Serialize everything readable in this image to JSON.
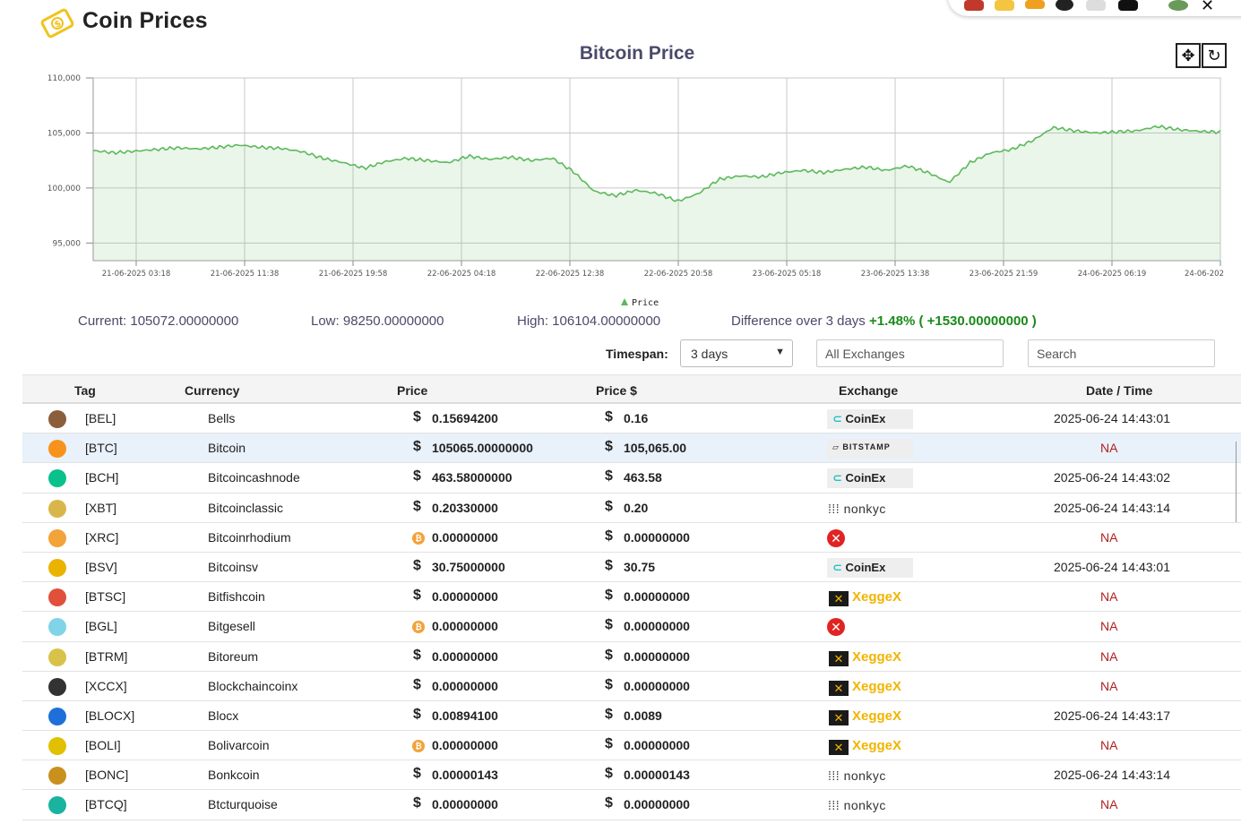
{
  "app": {
    "title": "Coin Prices"
  },
  "chart": {
    "title": "Bitcoin Price",
    "pan_icon": "move-icon",
    "reset_icon": "refresh-icon"
  },
  "chart_data": {
    "type": "area",
    "title": "Bitcoin Price",
    "series": [
      {
        "name": "Price",
        "color": "#5cb85c"
      }
    ],
    "x_ticks": [
      "21-06-2025 03:18",
      "21-06-2025 11:38",
      "21-06-2025 19:58",
      "22-06-2025 04:18",
      "22-06-2025 12:38",
      "22-06-2025 20:58",
      "23-06-2025 05:18",
      "23-06-2025 13:38",
      "23-06-2025 21:59",
      "24-06-2025 06:19",
      "24-06-202"
    ],
    "y_ticks": [
      "110,000",
      "105,000",
      "100,000",
      "95,000"
    ],
    "ylim": [
      93400,
      110000
    ],
    "values": [
      103400,
      103200,
      103350,
      103500,
      103650,
      103550,
      103700,
      103900,
      103700,
      103600,
      103300,
      102700,
      102300,
      101800,
      102400,
      102700,
      102500,
      102300,
      102900,
      102600,
      102800,
      102500,
      102700,
      101500,
      99700,
      99300,
      99800,
      99500,
      98800,
      99500,
      100800,
      101100,
      101000,
      101400,
      101600,
      101400,
      101700,
      101900,
      101600,
      102000,
      101400,
      100500,
      102300,
      103200,
      103500,
      104300,
      105500,
      105200,
      105000,
      105100,
      105200,
      105600,
      105300,
      105150,
      105072
    ],
    "legend": "Price"
  },
  "stats": {
    "current": "Current: 105072.00000000",
    "low": "Low: 98250.00000000",
    "high": "High: 106104.00000000",
    "diff_label": "Difference over 3 days",
    "diff_value": "+1.48% ( +1530.00000000 )"
  },
  "filters": {
    "timespan_label": "Timespan:",
    "timespan_value": "3 days",
    "exchange_placeholder": "All Exchanges",
    "search_placeholder": "Search"
  },
  "table": {
    "headers": {
      "tag": "Tag",
      "currency": "Currency",
      "price": "Price",
      "price_usd": "Price $",
      "exchange": "Exchange",
      "datetime": "Date / Time"
    },
    "rows": [
      {
        "tag": "[BEL]",
        "currency": "Bells",
        "price_symbol": "$",
        "price": "0.15694200",
        "usd": "0.16",
        "exchange": "CoinEx",
        "date": "2025-06-24 14:43:01",
        "icon_color": "#8b5e3c"
      },
      {
        "tag": "[BTC]",
        "currency": "Bitcoin",
        "price_symbol": "$",
        "price": "105065.00000000",
        "usd": "105,065.00",
        "exchange": "BITSTAMP",
        "date": "NA",
        "icon_color": "#f7931a"
      },
      {
        "tag": "[BCH]",
        "currency": "Bitcoincashnode",
        "price_symbol": "$",
        "price": "463.58000000",
        "usd": "463.58",
        "exchange": "CoinEx",
        "date": "2025-06-24 14:43:02",
        "icon_color": "#0ac18e"
      },
      {
        "tag": "[XBT]",
        "currency": "Bitcoinclassic",
        "price_symbol": "$",
        "price": "0.20330000",
        "usd": "0.20",
        "exchange": "nonkyc",
        "date": "2025-06-24 14:43:14",
        "icon_color": "#d9b64a"
      },
      {
        "tag": "[XRC]",
        "currency": "Bitcoinrhodium",
        "price_symbol": "₿",
        "price": "0.00000000",
        "usd": "0.00000000",
        "exchange": "none",
        "date": "NA",
        "icon_color": "#f2a33a"
      },
      {
        "tag": "[BSV]",
        "currency": "Bitcoinsv",
        "price_symbol": "$",
        "price": "30.75000000",
        "usd": "30.75",
        "exchange": "CoinEx",
        "date": "2025-06-24 14:43:01",
        "icon_color": "#eab300"
      },
      {
        "tag": "[BTSC]",
        "currency": "Bitfishcoin",
        "price_symbol": "$",
        "price": "0.00000000",
        "usd": "0.00000000",
        "exchange": "XeggeX",
        "date": "NA",
        "icon_color": "#e0503a"
      },
      {
        "tag": "[BGL]",
        "currency": "Bitgesell",
        "price_symbol": "₿",
        "price": "0.00000000",
        "usd": "0.00000000",
        "exchange": "none",
        "date": "NA",
        "icon_color": "#7fd4e8"
      },
      {
        "tag": "[BTRM]",
        "currency": "Bitoreum",
        "price_symbol": "$",
        "price": "0.00000000",
        "usd": "0.00000000",
        "exchange": "XeggeX",
        "date": "NA",
        "icon_color": "#d8c24a"
      },
      {
        "tag": "[XCCX]",
        "currency": "Blockchaincoinx",
        "price_symbol": "$",
        "price": "0.00000000",
        "usd": "0.00000000",
        "exchange": "XeggeX",
        "date": "NA",
        "icon_color": "#333333"
      },
      {
        "tag": "[BLOCX]",
        "currency": "Blocx",
        "price_symbol": "$",
        "price": "0.00894100",
        "usd": "0.0089",
        "exchange": "XeggeX",
        "date": "2025-06-24 14:43:17",
        "icon_color": "#1e6fd9"
      },
      {
        "tag": "[BOLI]",
        "currency": "Bolivarcoin",
        "price_symbol": "₿",
        "price": "0.00000000",
        "usd": "0.00000000",
        "exchange": "XeggeX",
        "date": "NA",
        "icon_color": "#e0c000"
      },
      {
        "tag": "[BONC]",
        "currency": "Bonkcoin",
        "price_symbol": "$",
        "price": "0.00000143",
        "usd": "0.00000143",
        "exchange": "nonkyc",
        "date": "2025-06-24 14:43:14",
        "icon_color": "#c9901e"
      },
      {
        "tag": "[BTCQ]",
        "currency": "Btcturquoise",
        "price_symbol": "$",
        "price": "0.00000000",
        "usd": "0.00000000",
        "exchange": "nonkyc",
        "date": "NA",
        "icon_color": "#19b3a0"
      }
    ]
  }
}
